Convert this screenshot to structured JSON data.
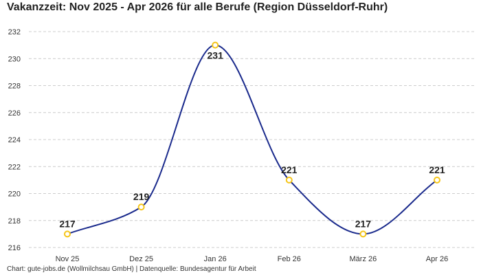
{
  "title": "Vakanzzeit: Nov 2025 - Apr 2026 für alle Berufe (Region Düsseldorf-Ruhr)",
  "source": "Chart: gute-jobs.de (Wollmilchsau GmbH) | Datenquelle: Bundesagentur für Arbeit",
  "colors": {
    "line": "#1a2a8c",
    "marker_stroke": "#f5c518",
    "marker_fill": "#ffffff",
    "grid": "#cccccc"
  },
  "chart_data": {
    "type": "line",
    "title": "Vakanzzeit: Nov 2025 - Apr 2026 für alle Berufe (Region Düsseldorf-Ruhr)",
    "xlabel": "",
    "ylabel": "",
    "categories": [
      "Nov 25",
      "Dez 25",
      "Jan 26",
      "Feb 26",
      "März 26",
      "Apr 26"
    ],
    "series": [
      {
        "values": [
          217,
          219,
          231,
          221,
          217,
          221
        ]
      }
    ],
    "data_labels": [
      "217",
      "219",
      "231",
      "221",
      "217",
      "221"
    ],
    "yticks": [
      216,
      218,
      220,
      222,
      224,
      226,
      228,
      230,
      232
    ],
    "ytick_labels": [
      "216",
      "218",
      "220",
      "222",
      "224",
      "226",
      "228",
      "230",
      "232"
    ],
    "ylim": [
      216,
      232
    ],
    "grid": "horizontal dashed",
    "legend": "none",
    "smooth": true
  }
}
